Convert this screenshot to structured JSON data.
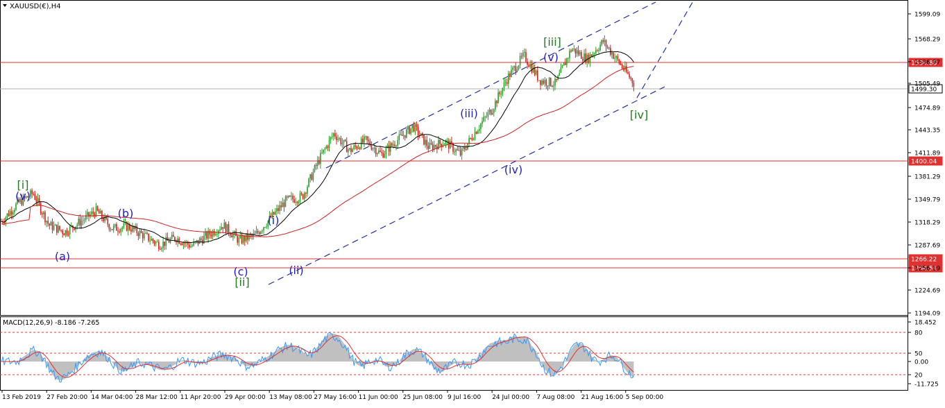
{
  "window": {
    "symbol_title": "XAUUSD(€),H4",
    "menu_arrow_icon": "triangle-down-icon"
  },
  "colors": {
    "background": "#ffffff",
    "frame": "#000000",
    "bull_candle": "#2a9d2a",
    "bear_candle": "#d21f1f",
    "ma_fast": "#000000",
    "ma_slow": "#cc2222",
    "hline": "#e03030",
    "bid_line": "#b0b0b0",
    "trend": "#1f2fa8",
    "label_blue": "#2222bb",
    "label_green": "#1f7a1f",
    "macd_hist": "#c0c0c0",
    "macd_line": "#3399ff",
    "signal_line": "#e03030",
    "level_dash": "#d04040"
  },
  "price_axis": {
    "ticks": [
      "1599.09",
      "1568.29",
      "1536.97",
      "1505.49",
      "1474.89",
      "1443.35",
      "1411.89",
      "1381.29",
      "1349.79",
      "1318.29",
      "1287.69",
      "1256.19",
      "1224.69",
      "1194.09"
    ],
    "hline_labels": [
      {
        "price": "1534.88",
        "style": "red"
      },
      {
        "price": "1499.30",
        "style": "grey"
      },
      {
        "price": "1400.04",
        "style": "red"
      },
      {
        "price": "1266.22",
        "style": "red"
      },
      {
        "price": "1254.51",
        "style": "red"
      }
    ]
  },
  "wave_labels": [
    {
      "text": "[i]",
      "color": "green"
    },
    {
      "text": "(v)",
      "color": "blue"
    },
    {
      "text": "(a)",
      "color": "blue"
    },
    {
      "text": "(b)",
      "color": "blue"
    },
    {
      "text": "(c)",
      "color": "blue"
    },
    {
      "text": "[ii]",
      "color": "green"
    },
    {
      "text": "(i)",
      "color": "blue"
    },
    {
      "text": "(ii)",
      "color": "blue"
    },
    {
      "text": "(iii)",
      "color": "blue"
    },
    {
      "text": "(iv)",
      "color": "blue"
    },
    {
      "text": "[iii]",
      "color": "green"
    },
    {
      "text": "(v)",
      "color": "blue"
    },
    {
      "text": "[iv]",
      "color": "green"
    }
  ],
  "macd": {
    "label": "MACD(12,26,9) -8.186 -7.265",
    "axis_ticks": [
      "18.452",
      "80",
      "50",
      "0.00",
      "20",
      "-11.725"
    ]
  },
  "time_axis": {
    "labels": [
      "13 Feb 2019",
      "27 Feb 20:00",
      "14 Mar 04:00",
      "28 Mar 12:00",
      "11 Apr 20:00",
      "29 Apr 00:00",
      "13 May 08:00",
      "27 May 16:00",
      "11 Jun 00:00",
      "25 Jun 08:00",
      "9 Jul 16:00",
      "24 Jul 00:00",
      "7 Aug 08:00",
      "21 Aug 16:00",
      "5 Sep 00:00"
    ]
  },
  "chart_data": {
    "type": "candlestick",
    "symbol": "XAUUSD(€)",
    "timeframe": "H4",
    "x_range": [
      "13 Feb 2019",
      "5 Sep 00:00"
    ],
    "y_range": [
      1194.09,
      1610
    ],
    "horizontal_levels": [
      1534.88,
      1499.3,
      1400.04,
      1266.22,
      1254.51
    ],
    "approx_close_path": [
      [
        "13 Feb 2019",
        1305
      ],
      [
        "18 Feb",
        1330
      ],
      [
        "20 Feb",
        1345
      ],
      [
        "27 Feb 20:00",
        1300
      ],
      [
        "5 Mar",
        1290
      ],
      [
        "14 Mar 04:00",
        1305
      ],
      [
        "20 Mar",
        1320
      ],
      [
        "28 Mar 12:00",
        1295
      ],
      [
        "5 Apr",
        1298
      ],
      [
        "11 Apr 20:00",
        1285
      ],
      [
        "20 Apr",
        1272
      ],
      [
        "29 Apr 00:00",
        1282
      ],
      [
        "5 May",
        1270
      ],
      [
        "10 May",
        1285
      ],
      [
        "13 May 08:00",
        1300
      ],
      [
        "20 May",
        1278
      ],
      [
        "27 May 16:00",
        1285
      ],
      [
        "1 Jun",
        1310
      ],
      [
        "5 Jun",
        1335
      ],
      [
        "11 Jun 00:00",
        1340
      ],
      [
        "18 Jun",
        1390
      ],
      [
        "21 Jun",
        1430
      ],
      [
        "25 Jun 08:00",
        1405
      ],
      [
        "30 Jun",
        1420
      ],
      [
        "3 Jul",
        1400
      ],
      [
        "9 Jul 16:00",
        1420
      ],
      [
        "15 Jul",
        1440
      ],
      [
        "18 Jul",
        1410
      ],
      [
        "24 Jul 00:00",
        1418
      ],
      [
        "30 Jul",
        1400
      ],
      [
        "1 Aug",
        1435
      ],
      [
        "5 Aug",
        1465
      ],
      [
        "7 Aug 08:00",
        1510
      ],
      [
        "12 Aug",
        1540
      ],
      [
        "15 Aug",
        1505
      ],
      [
        "21 Aug 16:00",
        1500
      ],
      [
        "26 Aug",
        1550
      ],
      [
        "30 Aug",
        1535
      ],
      [
        "2 Sep",
        1560
      ],
      [
        "4 Sep",
        1530
      ],
      [
        "5 Sep 00:00",
        1499.3
      ]
    ],
    "macd_value": -8.186,
    "signal_value": -7.265
  }
}
